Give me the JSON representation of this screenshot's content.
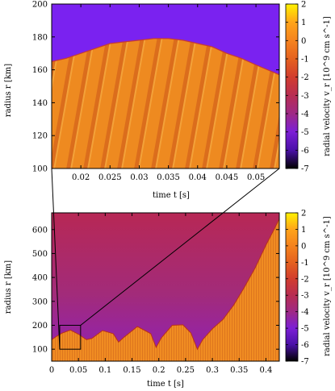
{
  "chart_data": [
    {
      "type": "heatmap",
      "panel": "top (zoom)",
      "xlabel": "time t [s]",
      "ylabel": "radius r [km]",
      "xlim": [
        0.015,
        0.054
      ],
      "ylim": [
        100,
        200
      ],
      "xticks": [
        {
          "value": 0.02,
          "label": "0.02"
        },
        {
          "value": 0.025,
          "label": "0.025"
        },
        {
          "value": 0.03,
          "label": "0.03"
        },
        {
          "value": 0.035,
          "label": "0.035"
        },
        {
          "value": 0.04,
          "label": "0.04"
        },
        {
          "value": 0.045,
          "label": "0.045"
        },
        {
          "value": 0.05,
          "label": "0.05"
        }
      ],
      "yticks": [
        {
          "value": 100,
          "label": "100"
        },
        {
          "value": 120,
          "label": "120"
        },
        {
          "value": 140,
          "label": "140"
        },
        {
          "value": 160,
          "label": "160"
        },
        {
          "value": 180,
          "label": "180"
        },
        {
          "value": 200,
          "label": "200"
        }
      ],
      "shock_front": [
        {
          "t": 0.015,
          "r": 165
        },
        {
          "t": 0.0175,
          "r": 167
        },
        {
          "t": 0.02,
          "r": 170
        },
        {
          "t": 0.0225,
          "r": 173
        },
        {
          "t": 0.025,
          "r": 176
        },
        {
          "t": 0.0275,
          "r": 177
        },
        {
          "t": 0.03,
          "r": 178
        },
        {
          "t": 0.0325,
          "r": 179
        },
        {
          "t": 0.035,
          "r": 179
        },
        {
          "t": 0.0375,
          "r": 178
        },
        {
          "t": 0.04,
          "r": 176
        },
        {
          "t": 0.0425,
          "r": 174
        },
        {
          "t": 0.045,
          "r": 170
        },
        {
          "t": 0.0475,
          "r": 167
        },
        {
          "t": 0.05,
          "r": 163
        },
        {
          "t": 0.054,
          "r": 157
        }
      ],
      "colorbar": {
        "label": "radial velocity v_r [10^9 cm s^-1]",
        "ticks": [
          "2",
          "1",
          "0",
          "-1",
          "-2",
          "-3",
          "-4",
          "-5",
          "-6",
          "-7"
        ],
        "range": [
          -7,
          2
        ]
      }
    },
    {
      "type": "heatmap",
      "panel": "bottom (full)",
      "xlabel": "time t [s]",
      "ylabel": "radius r [km]",
      "xlim": [
        0,
        0.425
      ],
      "ylim": [
        50,
        670
      ],
      "xticks": [
        {
          "value": 0,
          "label": "0"
        },
        {
          "value": 0.05,
          "label": "0.05"
        },
        {
          "value": 0.1,
          "label": "0.1"
        },
        {
          "value": 0.15,
          "label": "0.15"
        },
        {
          "value": 0.2,
          "label": "0.2"
        },
        {
          "value": 0.25,
          "label": "0.25"
        },
        {
          "value": 0.3,
          "label": "0.3"
        },
        {
          "value": 0.35,
          "label": "0.35"
        },
        {
          "value": 0.4,
          "label": "0.4"
        }
      ],
      "yticks": [
        {
          "value": 100,
          "label": "100"
        },
        {
          "value": 200,
          "label": "200"
        },
        {
          "value": 300,
          "label": "300"
        },
        {
          "value": 400,
          "label": "400"
        },
        {
          "value": 500,
          "label": "500"
        },
        {
          "value": 600,
          "label": "600"
        }
      ],
      "shock_front": [
        {
          "t": 0.0,
          "r": 140
        },
        {
          "t": 0.01,
          "r": 155
        },
        {
          "t": 0.02,
          "r": 168
        },
        {
          "t": 0.035,
          "r": 180
        },
        {
          "t": 0.05,
          "r": 163
        },
        {
          "t": 0.065,
          "r": 140
        },
        {
          "t": 0.075,
          "r": 145
        },
        {
          "t": 0.095,
          "r": 178
        },
        {
          "t": 0.115,
          "r": 165
        },
        {
          "t": 0.125,
          "r": 130
        },
        {
          "t": 0.135,
          "r": 150
        },
        {
          "t": 0.16,
          "r": 195
        },
        {
          "t": 0.185,
          "r": 165
        },
        {
          "t": 0.195,
          "r": 108
        },
        {
          "t": 0.205,
          "r": 148
        },
        {
          "t": 0.225,
          "r": 200
        },
        {
          "t": 0.245,
          "r": 202
        },
        {
          "t": 0.26,
          "r": 168
        },
        {
          "t": 0.272,
          "r": 100
        },
        {
          "t": 0.282,
          "r": 140
        },
        {
          "t": 0.3,
          "r": 185
        },
        {
          "t": 0.32,
          "r": 225
        },
        {
          "t": 0.34,
          "r": 285
        },
        {
          "t": 0.36,
          "r": 360
        },
        {
          "t": 0.38,
          "r": 440
        },
        {
          "t": 0.4,
          "r": 535
        },
        {
          "t": 0.415,
          "r": 600
        },
        {
          "t": 0.425,
          "r": 645
        }
      ],
      "zoom_box": {
        "t": [
          0.015,
          0.054
        ],
        "r": [
          100,
          200
        ]
      },
      "colorbar": {
        "label": "radial velocity v_r [10^9 cm s^-1]",
        "ticks": [
          "2",
          "1",
          "0",
          "-1",
          "-2",
          "-3",
          "-4",
          "-5",
          "-6",
          "-7"
        ],
        "range": [
          -7,
          2
        ]
      }
    }
  ]
}
